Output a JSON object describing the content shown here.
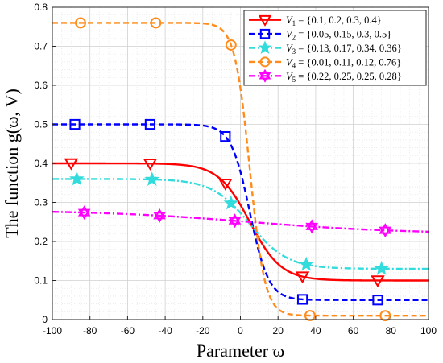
{
  "chart_data": {
    "type": "line",
    "xlabel": "Parameter ϖ",
    "ylabel": "The function g(ϖ, V)",
    "xlim": [
      -100,
      100
    ],
    "ylim": [
      0,
      0.8
    ],
    "x_ticks": [
      -100,
      -80,
      -60,
      -40,
      -20,
      0,
      20,
      40,
      60,
      80,
      100
    ],
    "x_tick_labels": [
      "-100",
      "-80",
      "-60",
      "-40",
      "-20",
      "0",
      "20",
      "40",
      "60",
      "80",
      "100"
    ],
    "y_ticks": [
      0,
      0.1,
      0.2,
      0.3,
      0.4,
      0.5,
      0.6,
      0.7,
      0.8
    ],
    "y_tick_labels": [
      "0",
      "0.1",
      "0.2",
      "0.3",
      "0.4",
      "0.5",
      "0.6",
      "0.7",
      "0.8"
    ],
    "grid": true,
    "minor_grid": true,
    "legend_position": "top-right",
    "series": [
      {
        "name": "V1 = {0.1, 0.2, 0.3, 0.4}",
        "legend_parts": [
          "V",
          "1",
          " = {0.1, 0.2, 0.3, 0.4}"
        ],
        "color": "#ff0000",
        "line_style": "solid",
        "marker": "triangle-down",
        "high": 0.4,
        "low": 0.1,
        "steepness": 0.12,
        "markers_x": [
          -90,
          -48,
          -8,
          33,
          73
        ]
      },
      {
        "name": "V2 = {0.05, 0.15, 0.3, 0.5}",
        "legend_parts": [
          "V",
          "2",
          " = {0.05, 0.15, 0.3, 0.5}"
        ],
        "color": "#0000ff",
        "line_style": "dashed",
        "marker": "square",
        "high": 0.5,
        "low": 0.05,
        "steepness": 0.2,
        "markers_x": [
          -88,
          -48,
          -8,
          33,
          73
        ]
      },
      {
        "name": "V3 = {0.13, 0.17, 0.34, 0.36}",
        "legend_parts": [
          "V",
          "3",
          " = {0.13, 0.17, 0.34, 0.36}"
        ],
        "color": "#33dcdc",
        "line_style": "dash-dot",
        "marker": "pentagram",
        "high": 0.36,
        "low": 0.13,
        "steepness": 0.1,
        "markers_x": [
          -87,
          -47,
          -5,
          35,
          75
        ]
      },
      {
        "name": "V4 = {0.01, 0.11, 0.12, 0.76}",
        "legend_parts": [
          "V",
          "4",
          " = {0.01, 0.11, 0.12, 0.76}"
        ],
        "color": "#ff8c1a",
        "line_style": "dashed",
        "marker": "circle",
        "high": 0.76,
        "low": 0.01,
        "steepness": 0.25,
        "markers_x": [
          -85,
          -45,
          -5,
          37,
          77
        ]
      },
      {
        "name": "V5 = {0.22, 0.25, 0.25, 0.28}",
        "legend_parts": [
          "V",
          "5",
          " = {0.22, 0.25, 0.25, 0.28}"
        ],
        "color": "#ff00ff",
        "line_style": "dash-dot",
        "marker": "hexagram",
        "high": 0.28,
        "low": 0.22,
        "steepness": 0.025,
        "markers_x": [
          -83,
          -43,
          -3,
          38,
          77
        ]
      }
    ]
  }
}
